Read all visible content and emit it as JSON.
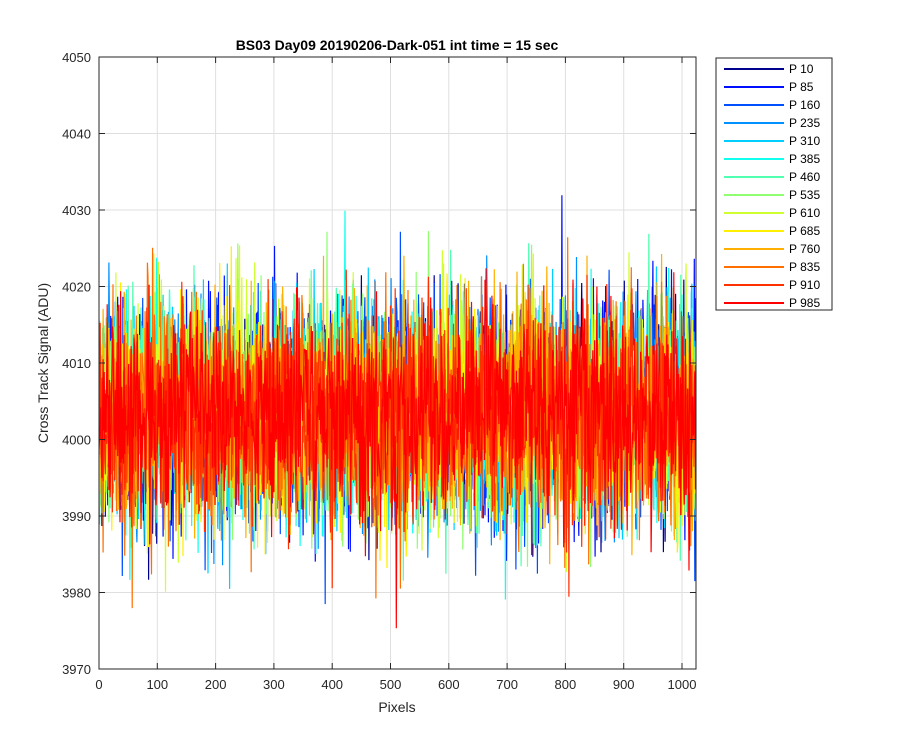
{
  "chart_data": {
    "type": "line",
    "title": "BS03 Day09 20190206-Dark-051 int time = 15 sec",
    "xlabel": "Pixels",
    "ylabel": "Cross Track Signal (ADU)",
    "xlim": [
      0,
      1024
    ],
    "ylim": [
      3970,
      4050
    ],
    "xticks": [
      0,
      100,
      200,
      300,
      400,
      500,
      600,
      700,
      800,
      900,
      1000
    ],
    "yticks": [
      3970,
      3980,
      3990,
      4000,
      4010,
      4020,
      4030,
      4040,
      4050
    ],
    "grid": true,
    "legend_position": "outside-top-right",
    "noise": {
      "mean": 4003.5,
      "sd": 7,
      "n_points": 1024
    },
    "series": [
      {
        "name": "P 10",
        "color": "#00008f"
      },
      {
        "name": "P 85",
        "color": "#0010ff"
      },
      {
        "name": "P 160",
        "color": "#0050ff"
      },
      {
        "name": "P 235",
        "color": "#0090ff"
      },
      {
        "name": "P 310",
        "color": "#00cfff"
      },
      {
        "name": "P 385",
        "color": "#10ffef"
      },
      {
        "name": "P 460",
        "color": "#50ffaf"
      },
      {
        "name": "P 535",
        "color": "#8fff70"
      },
      {
        "name": "P 610",
        "color": "#cfff30"
      },
      {
        "name": "P 685",
        "color": "#ffef00"
      },
      {
        "name": "P 760",
        "color": "#ffaf00"
      },
      {
        "name": "P 835",
        "color": "#ff7000"
      },
      {
        "name": "P 910",
        "color": "#ff3000"
      },
      {
        "name": "P 985",
        "color": "#ff0000"
      }
    ]
  }
}
